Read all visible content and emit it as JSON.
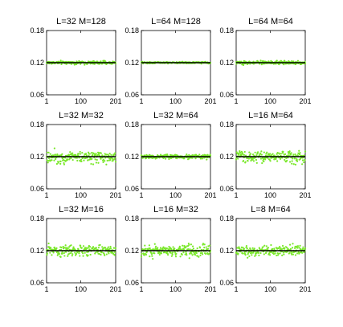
{
  "chart_data": [
    {
      "type": "scatter",
      "title": "L=32 M=128",
      "x_range": [
        1,
        201
      ],
      "ylim": [
        0.06,
        0.18
      ],
      "yticks": [
        "0.06",
        "0.12",
        "0.18"
      ],
      "xticks": [
        "1",
        "100",
        "201"
      ],
      "reference_y": 0.12,
      "y_center": 0.12,
      "y_spread": 0.003,
      "n_points": 201,
      "point_color": "#7ae82a",
      "line_color": "#000000"
    },
    {
      "type": "scatter",
      "title": "L=64 M=128",
      "x_range": [
        1,
        201
      ],
      "ylim": [
        0.06,
        0.18
      ],
      "yticks": [
        "0.06",
        "0.12",
        "0.18"
      ],
      "xticks": [
        "1",
        "100",
        "201"
      ],
      "reference_y": 0.12,
      "y_center": 0.12,
      "y_spread": 0.0015,
      "n_points": 201,
      "point_color": "#7ae82a",
      "line_color": "#000000"
    },
    {
      "type": "scatter",
      "title": "L=64 M=64",
      "x_range": [
        1,
        201
      ],
      "ylim": [
        0.06,
        0.18
      ],
      "yticks": [
        "0.06",
        "0.12",
        "0.18"
      ],
      "xticks": [
        "1",
        "100",
        "201"
      ],
      "reference_y": 0.12,
      "y_center": 0.12,
      "y_spread": 0.003,
      "n_points": 201,
      "point_color": "#7ae82a",
      "line_color": "#000000"
    },
    {
      "type": "scatter",
      "title": "L=32 M=32",
      "x_range": [
        1,
        201
      ],
      "ylim": [
        0.06,
        0.18
      ],
      "yticks": [
        "0.06",
        "0.12",
        "0.18"
      ],
      "xticks": [
        "1",
        "100",
        "201"
      ],
      "reference_y": 0.12,
      "y_center": 0.12,
      "y_spread": 0.011,
      "n_points": 201,
      "point_color": "#7ae82a",
      "line_color": "#000000"
    },
    {
      "type": "scatter",
      "title": "L=32 M=64",
      "x_range": [
        1,
        201
      ],
      "ylim": [
        0.06,
        0.18
      ],
      "yticks": [
        "0.06",
        "0.12",
        "0.18"
      ],
      "xticks": [
        "1",
        "100",
        "201"
      ],
      "reference_y": 0.12,
      "y_center": 0.12,
      "y_spread": 0.004,
      "n_points": 201,
      "point_color": "#7ae82a",
      "line_color": "#000000"
    },
    {
      "type": "scatter",
      "title": "L=16 M=64",
      "x_range": [
        1,
        201
      ],
      "ylim": [
        0.06,
        0.18
      ],
      "yticks": [
        "0.06",
        "0.12",
        "0.18"
      ],
      "xticks": [
        "1",
        "100",
        "201"
      ],
      "reference_y": 0.12,
      "y_center": 0.12,
      "y_spread": 0.011,
      "n_points": 201,
      "point_color": "#7ae82a",
      "line_color": "#000000"
    },
    {
      "type": "scatter",
      "title": "L=32 M=16",
      "x_range": [
        1,
        201
      ],
      "ylim": [
        0.06,
        0.18
      ],
      "yticks": [
        "0.06",
        "0.12",
        "0.18"
      ],
      "xticks": [
        "1",
        "100",
        "201"
      ],
      "reference_y": 0.12,
      "y_center": 0.12,
      "y_spread": 0.01,
      "n_points": 201,
      "point_color": "#7ae82a",
      "line_color": "#000000"
    },
    {
      "type": "scatter",
      "title": "L=16 M=32",
      "x_range": [
        1,
        201
      ],
      "ylim": [
        0.06,
        0.18
      ],
      "yticks": [
        "0.06",
        "0.12",
        "0.18"
      ],
      "xticks": [
        "1",
        "100",
        "201"
      ],
      "reference_y": 0.12,
      "y_center": 0.12,
      "y_spread": 0.011,
      "n_points": 201,
      "point_color": "#7ae82a",
      "line_color": "#000000"
    },
    {
      "type": "scatter",
      "title": "L=8 M=64",
      "x_range": [
        1,
        201
      ],
      "ylim": [
        0.06,
        0.18
      ],
      "yticks": [
        "0.06",
        "0.12",
        "0.18"
      ],
      "xticks": [
        "1",
        "100",
        "201"
      ],
      "reference_y": 0.12,
      "y_center": 0.12,
      "y_spread": 0.01,
      "n_points": 201,
      "point_color": "#7ae82a",
      "line_color": "#000000"
    }
  ]
}
